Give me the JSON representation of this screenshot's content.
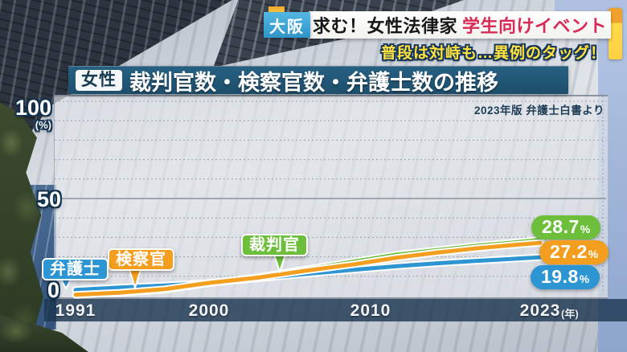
{
  "header": {
    "region_badge": "大阪",
    "headline": "求む！女性法律家",
    "headline_highlight": "学生向けイベント",
    "subheadline": "普段は対峙も…異例のタッグ！"
  },
  "title_bar": {
    "badge": "女性",
    "title": "裁判官数・検察官数・弁護士数の推移"
  },
  "chart": {
    "source_note": "2023年版 弁護士白書より",
    "y_axis": {
      "top": "100",
      "unit": "(%)",
      "mid": "50",
      "bottom": "0"
    },
    "x_axis": {
      "unit": "(年)"
    }
  },
  "chart_data": {
    "type": "line",
    "title": "女性 裁判官数・検察官数・弁護士数の推移",
    "source": "2023年版 弁護士白書より",
    "ylabel": "%",
    "ylim": [
      0,
      100
    ],
    "grid": "dotted horizontal lines every 10%, solid at 50",
    "legend_position": "inline-callouts",
    "x_ticks": [
      "1991",
      "2000",
      "2010",
      "2023"
    ],
    "x_unit": "年",
    "series": [
      {
        "name": "裁判官",
        "color": "#6dbe3b",
        "end_value": "28.7",
        "end_unit": "%",
        "points": [
          [
            1991,
            0.4
          ],
          [
            1994,
            1.4
          ],
          [
            1997,
            3.1
          ],
          [
            2000,
            6.3
          ],
          [
            2003,
            9.6
          ],
          [
            2006,
            13.6
          ],
          [
            2009,
            17.6
          ],
          [
            2012,
            21.1
          ],
          [
            2015,
            23.4
          ],
          [
            2018,
            25.6
          ],
          [
            2021,
            27.4
          ],
          [
            2023,
            28.7
          ]
        ]
      },
      {
        "name": "検察官",
        "color": "#f39e1e",
        "end_value": "27.2",
        "end_unit": "%",
        "points": [
          [
            1991,
            0.5
          ],
          [
            1994,
            1.6
          ],
          [
            1997,
            3.4
          ],
          [
            2000,
            6.6
          ],
          [
            2003,
            9.3
          ],
          [
            2006,
            12.9
          ],
          [
            2009,
            16.2
          ],
          [
            2012,
            19.6
          ],
          [
            2015,
            22.1
          ],
          [
            2018,
            24.3
          ],
          [
            2021,
            26.1
          ],
          [
            2023,
            27.2
          ]
        ]
      },
      {
        "name": "弁護士",
        "color": "#2e95d3",
        "end_value": "19.8",
        "end_unit": "%",
        "points": [
          [
            1991,
            3.0
          ],
          [
            1994,
            4.2
          ],
          [
            1997,
            5.3
          ],
          [
            2000,
            6.6
          ],
          [
            2003,
            8.8
          ],
          [
            2006,
            11.2
          ],
          [
            2009,
            13.4
          ],
          [
            2012,
            15.2
          ],
          [
            2015,
            16.6
          ],
          [
            2018,
            17.9
          ],
          [
            2021,
            19.0
          ],
          [
            2023,
            19.8
          ]
        ]
      }
    ],
    "colors": {
      "judge_green": "#6dbe3b",
      "prosecutor_orange": "#f39e1e",
      "lawyer_blue": "#2e95d3",
      "region_badge_blue": "#3fa9d8",
      "headline_red": "#d92a55",
      "accent_yellow": "#ffd84a",
      "title_navy": "#1d4e6c"
    }
  }
}
